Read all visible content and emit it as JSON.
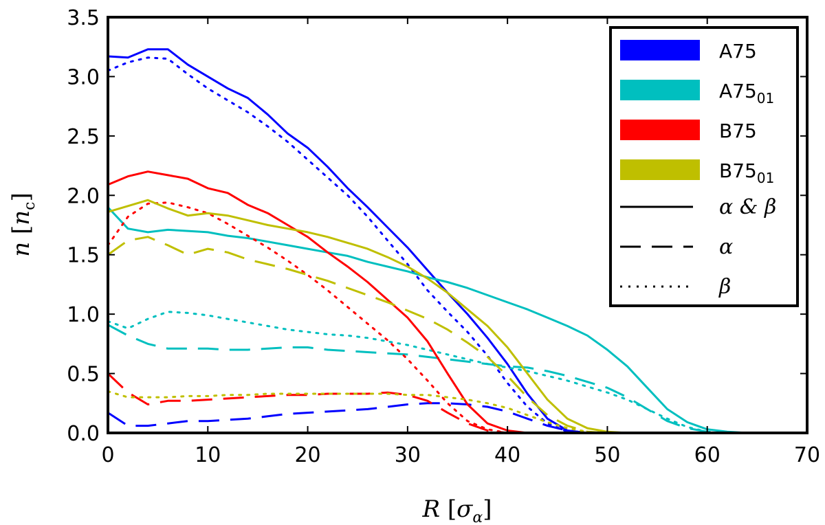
{
  "chart_data": {
    "type": "line",
    "title": "",
    "xlabel": "R [σ_α]",
    "ylabel": "n [n_c]",
    "xlim": [
      0,
      70
    ],
    "ylim": [
      0,
      3.5
    ],
    "xticks": [
      "0",
      "10",
      "20",
      "30",
      "40",
      "50",
      "60",
      "70"
    ],
    "yticks": [
      "0.0",
      "0.5",
      "1.0",
      "1.5",
      "2.0",
      "2.5",
      "3.0",
      "3.5"
    ],
    "grid": false,
    "legend_position": "top-right",
    "legend": {
      "colors": [
        {
          "label": "A75",
          "sub": "",
          "color": "#0000ff"
        },
        {
          "label": "A75",
          "sub": "01",
          "color": "#00bfbf"
        },
        {
          "label": "B75",
          "sub": "",
          "color": "#ff0000"
        },
        {
          "label": "B75",
          "sub": "01",
          "color": "#bfbf00"
        }
      ],
      "styles": [
        {
          "label": "α & β",
          "dash": "solid"
        },
        {
          "label": "α",
          "dash": "dashed"
        },
        {
          "label": "β",
          "dash": "dotted"
        }
      ]
    },
    "series": [
      {
        "name": "A75 α & β",
        "color": "#0000ff",
        "dash": "solid",
        "x": [
          0,
          2,
          4,
          6,
          8,
          10,
          12,
          14,
          16,
          18,
          20,
          22,
          24,
          26,
          28,
          30,
          32,
          34,
          36,
          38,
          40,
          42,
          44,
          46,
          48
        ],
        "y": [
          3.17,
          3.16,
          3.23,
          3.23,
          3.1,
          3.0,
          2.9,
          2.82,
          2.68,
          2.52,
          2.4,
          2.24,
          2.06,
          1.9,
          1.73,
          1.56,
          1.37,
          1.18,
          1.0,
          0.8,
          0.58,
          0.33,
          0.12,
          0.02,
          0.0
        ]
      },
      {
        "name": "A75 α",
        "color": "#0000ff",
        "dash": "dashed",
        "x": [
          0,
          2,
          4,
          6,
          8,
          10,
          12,
          14,
          16,
          18,
          20,
          22,
          24,
          26,
          28,
          30,
          32,
          34,
          36,
          38,
          40,
          42,
          44,
          46,
          48
        ],
        "y": [
          0.17,
          0.06,
          0.06,
          0.08,
          0.1,
          0.1,
          0.11,
          0.12,
          0.14,
          0.16,
          0.17,
          0.18,
          0.19,
          0.2,
          0.22,
          0.24,
          0.25,
          0.25,
          0.24,
          0.22,
          0.18,
          0.12,
          0.06,
          0.02,
          0.0
        ]
      },
      {
        "name": "A75 β",
        "color": "#0000ff",
        "dash": "dotted",
        "x": [
          0,
          2,
          4,
          6,
          8,
          10,
          12,
          14,
          16,
          18,
          20,
          22,
          24,
          26,
          28,
          30,
          32,
          34,
          36,
          38,
          40,
          42,
          44,
          46,
          48
        ],
        "y": [
          3.05,
          3.12,
          3.16,
          3.15,
          3.02,
          2.9,
          2.8,
          2.7,
          2.58,
          2.45,
          2.3,
          2.15,
          2.0,
          1.82,
          1.62,
          1.42,
          1.2,
          1.02,
          0.85,
          0.65,
          0.42,
          0.22,
          0.08,
          0.01,
          0.0
        ]
      },
      {
        "name": "A75_01 α & β",
        "color": "#00bfbf",
        "dash": "solid",
        "x": [
          0,
          2,
          4,
          6,
          8,
          10,
          12,
          14,
          16,
          18,
          20,
          22,
          24,
          26,
          28,
          30,
          32,
          34,
          36,
          38,
          40,
          42,
          44,
          46,
          48,
          50,
          52,
          54,
          56,
          58,
          60,
          62,
          64,
          66
        ],
        "y": [
          1.9,
          1.72,
          1.69,
          1.71,
          1.7,
          1.69,
          1.66,
          1.64,
          1.61,
          1.58,
          1.55,
          1.52,
          1.49,
          1.44,
          1.4,
          1.36,
          1.31,
          1.27,
          1.22,
          1.16,
          1.1,
          1.04,
          0.97,
          0.9,
          0.82,
          0.7,
          0.56,
          0.38,
          0.2,
          0.09,
          0.03,
          0.01,
          0.0,
          0.0
        ]
      },
      {
        "name": "A75_01 α",
        "color": "#00bfbf",
        "dash": "dashed",
        "x": [
          0,
          2,
          4,
          6,
          8,
          10,
          12,
          14,
          16,
          18,
          20,
          22,
          24,
          26,
          28,
          30,
          32,
          34,
          36,
          38,
          40,
          42,
          44,
          46,
          48,
          50,
          52,
          54,
          56,
          58,
          60,
          62
        ],
        "y": [
          0.91,
          0.82,
          0.75,
          0.71,
          0.71,
          0.71,
          0.7,
          0.7,
          0.71,
          0.72,
          0.72,
          0.7,
          0.69,
          0.68,
          0.67,
          0.66,
          0.64,
          0.62,
          0.6,
          0.58,
          0.56,
          0.55,
          0.52,
          0.48,
          0.43,
          0.38,
          0.3,
          0.2,
          0.1,
          0.04,
          0.01,
          0.0
        ]
      },
      {
        "name": "A75_01 β",
        "color": "#00bfbf",
        "dash": "dotted",
        "x": [
          0,
          2,
          4,
          6,
          8,
          10,
          12,
          14,
          16,
          18,
          20,
          22,
          24,
          26,
          28,
          30,
          32,
          34,
          36,
          38,
          40,
          42,
          44,
          46,
          48,
          50,
          52,
          54,
          56,
          58,
          60
        ],
        "y": [
          0.94,
          0.88,
          0.96,
          1.02,
          1.01,
          0.99,
          0.96,
          0.93,
          0.9,
          0.87,
          0.85,
          0.83,
          0.82,
          0.8,
          0.77,
          0.74,
          0.7,
          0.66,
          0.62,
          0.58,
          0.55,
          0.52,
          0.48,
          0.44,
          0.39,
          0.34,
          0.28,
          0.2,
          0.12,
          0.05,
          0.01
        ]
      },
      {
        "name": "B75 α & β",
        "color": "#ff0000",
        "dash": "solid",
        "x": [
          0,
          2,
          4,
          6,
          8,
          10,
          12,
          14,
          16,
          18,
          20,
          22,
          24,
          26,
          28,
          30,
          32,
          34,
          36,
          38,
          40,
          42,
          44
        ],
        "y": [
          2.09,
          2.16,
          2.2,
          2.17,
          2.14,
          2.06,
          2.02,
          1.92,
          1.85,
          1.75,
          1.65,
          1.52,
          1.4,
          1.27,
          1.12,
          0.97,
          0.77,
          0.5,
          0.24,
          0.08,
          0.02,
          0.0,
          0.0
        ]
      },
      {
        "name": "B75 α",
        "color": "#ff0000",
        "dash": "dashed",
        "x": [
          0,
          2,
          4,
          6,
          8,
          10,
          12,
          14,
          16,
          18,
          20,
          22,
          24,
          26,
          28,
          30,
          32,
          34,
          36,
          38,
          40
        ],
        "y": [
          0.5,
          0.34,
          0.24,
          0.27,
          0.27,
          0.28,
          0.29,
          0.3,
          0.31,
          0.32,
          0.32,
          0.33,
          0.33,
          0.33,
          0.34,
          0.32,
          0.27,
          0.17,
          0.08,
          0.02,
          0.0
        ]
      },
      {
        "name": "B75 β",
        "color": "#ff0000",
        "dash": "dotted",
        "x": [
          0,
          2,
          4,
          6,
          8,
          10,
          12,
          14,
          16,
          18,
          20,
          22,
          24,
          26,
          28,
          30,
          32,
          34,
          36,
          38,
          40
        ],
        "y": [
          1.58,
          1.82,
          1.93,
          1.94,
          1.9,
          1.85,
          1.76,
          1.66,
          1.56,
          1.45,
          1.33,
          1.2,
          1.06,
          0.92,
          0.78,
          0.62,
          0.44,
          0.25,
          0.1,
          0.03,
          0.0
        ]
      },
      {
        "name": "B75_01 α & β",
        "color": "#bfbf00",
        "dash": "solid",
        "x": [
          0,
          2,
          4,
          6,
          8,
          10,
          12,
          14,
          16,
          18,
          20,
          22,
          24,
          26,
          28,
          30,
          32,
          34,
          36,
          38,
          40,
          42,
          44,
          46,
          48,
          50,
          52
        ],
        "y": [
          1.86,
          1.91,
          1.96,
          1.89,
          1.83,
          1.85,
          1.83,
          1.79,
          1.75,
          1.72,
          1.69,
          1.65,
          1.6,
          1.55,
          1.48,
          1.4,
          1.3,
          1.18,
          1.04,
          0.9,
          0.72,
          0.5,
          0.28,
          0.12,
          0.04,
          0.01,
          0.0
        ]
      },
      {
        "name": "B75_01 α",
        "color": "#bfbf00",
        "dash": "dashed",
        "x": [
          0,
          2,
          4,
          6,
          8,
          10,
          12,
          14,
          16,
          18,
          20,
          22,
          24,
          26,
          28,
          30,
          32,
          34,
          36,
          38,
          40,
          42,
          44,
          46,
          48,
          50
        ],
        "y": [
          1.5,
          1.62,
          1.65,
          1.58,
          1.5,
          1.55,
          1.52,
          1.46,
          1.42,
          1.38,
          1.33,
          1.28,
          1.22,
          1.16,
          1.1,
          1.03,
          0.96,
          0.87,
          0.76,
          0.64,
          0.48,
          0.3,
          0.15,
          0.06,
          0.01,
          0.0
        ]
      },
      {
        "name": "B75_01 β",
        "color": "#bfbf00",
        "dash": "dotted",
        "x": [
          0,
          2,
          4,
          6,
          8,
          10,
          12,
          14,
          16,
          18,
          20,
          22,
          24,
          26,
          28,
          30,
          32,
          34,
          36,
          38,
          40,
          42,
          44,
          46,
          48,
          50
        ],
        "y": [
          0.35,
          0.3,
          0.3,
          0.3,
          0.31,
          0.31,
          0.32,
          0.32,
          0.33,
          0.33,
          0.33,
          0.33,
          0.33,
          0.33,
          0.33,
          0.32,
          0.32,
          0.3,
          0.28,
          0.25,
          0.21,
          0.15,
          0.09,
          0.04,
          0.01,
          0.0
        ]
      }
    ]
  }
}
